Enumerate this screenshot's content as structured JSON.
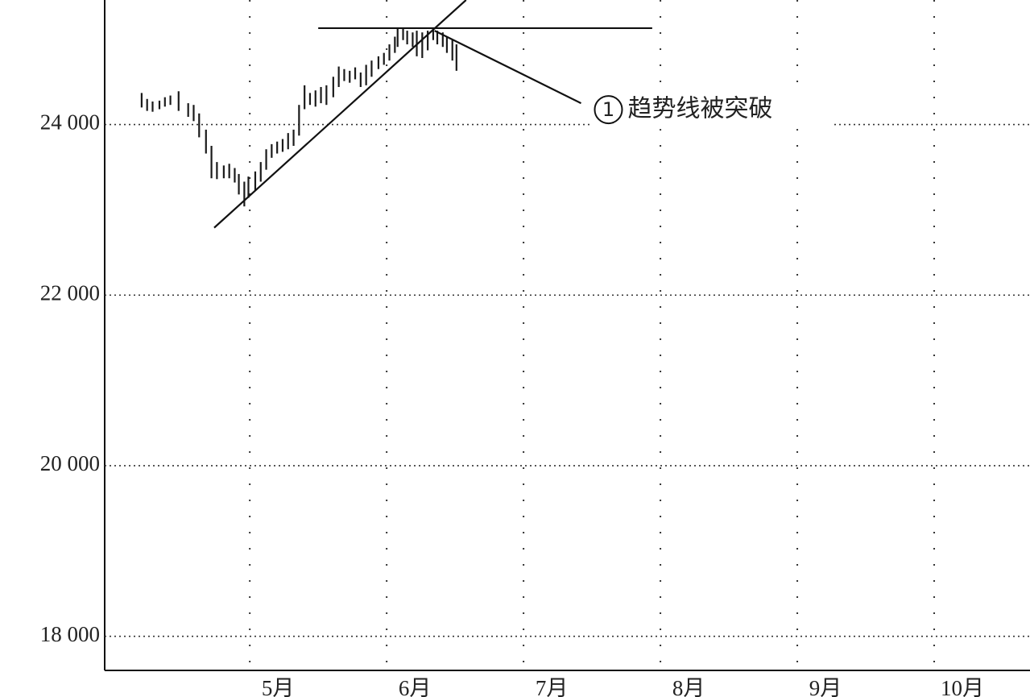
{
  "chart_data": {
    "type": "hilo",
    "color": "#1a1a1a",
    "x": [
      4.21,
      4.25,
      4.29,
      4.34,
      4.38,
      4.42,
      4.48,
      4.55,
      4.59,
      4.63,
      4.68,
      4.72,
      4.76,
      4.81,
      4.85,
      4.89,
      4.92,
      4.96,
      4.99,
      5.04,
      5.08,
      5.12,
      5.16,
      5.2,
      5.24,
      5.28,
      5.32,
      5.36,
      5.4,
      5.44,
      5.48,
      5.52,
      5.56,
      5.61,
      5.65,
      5.69,
      5.73,
      5.77,
      5.81,
      5.85,
      5.89,
      5.94,
      5.98,
      6.02,
      6.06,
      6.08,
      6.12,
      6.15,
      6.19,
      6.22,
      6.26,
      6.3,
      6.34,
      6.37,
      6.41,
      6.44,
      6.48,
      6.51
    ],
    "high": [
      24370,
      24300,
      24270,
      24280,
      24320,
      24340,
      24390,
      24250,
      24230,
      24130,
      23940,
      23750,
      23560,
      23520,
      23540,
      23490,
      23420,
      23330,
      23390,
      23450,
      23560,
      23710,
      23770,
      23800,
      23830,
      23900,
      23940,
      24230,
      24460,
      24370,
      24400,
      24440,
      24460,
      24560,
      24680,
      24650,
      24630,
      24670,
      24610,
      24700,
      24750,
      24800,
      24840,
      24940,
      25030,
      25130,
      25130,
      25100,
      25080,
      25100,
      25080,
      25100,
      25130,
      25100,
      25080,
      25030,
      24990,
      24940
    ],
    "low": [
      24200,
      24160,
      24150,
      24180,
      24210,
      24230,
      24160,
      24090,
      24040,
      23850,
      23660,
      23370,
      23360,
      23370,
      23370,
      23320,
      23180,
      23040,
      23140,
      23230,
      23330,
      23470,
      23610,
      23660,
      23680,
      23710,
      23750,
      23870,
      24180,
      24230,
      24210,
      24250,
      24230,
      24320,
      24440,
      24510,
      24490,
      24530,
      24440,
      24460,
      24560,
      24650,
      24700,
      24750,
      24840,
      24910,
      24990,
      24940,
      24910,
      24800,
      24780,
      24870,
      24990,
      24940,
      24910,
      24840,
      24750,
      24630
    ],
    "lines": [
      {
        "x": [
          4.74,
          6.58
        ],
        "y": [
          22790,
          25460
        ]
      },
      {
        "x": [
          5.5,
          7.94
        ],
        "y": [
          25130,
          25130
        ]
      },
      {
        "x": [
          6.35,
          7.42
        ],
        "y": [
          25100,
          24250
        ]
      }
    ],
    "annotation": {
      "marker": "1",
      "text": "趋势线被突破"
    },
    "xlim": [
      3.94,
      10.7
    ],
    "ylim": [
      17600,
      25460
    ],
    "xticks": [
      {
        "value": 5,
        "label": "5月"
      },
      {
        "value": 6,
        "label": "6月"
      },
      {
        "value": 7,
        "label": "7月"
      },
      {
        "value": 8,
        "label": "8月"
      },
      {
        "value": 9,
        "label": "9月"
      },
      {
        "value": 10,
        "label": "10月"
      }
    ],
    "yticks": [
      {
        "value": 18000,
        "label": "18 000"
      },
      {
        "value": 20000,
        "label": "20 000"
      },
      {
        "value": 22000,
        "label": "22 000"
      },
      {
        "value": 24000,
        "label": "24 000"
      }
    ],
    "grid": true
  }
}
